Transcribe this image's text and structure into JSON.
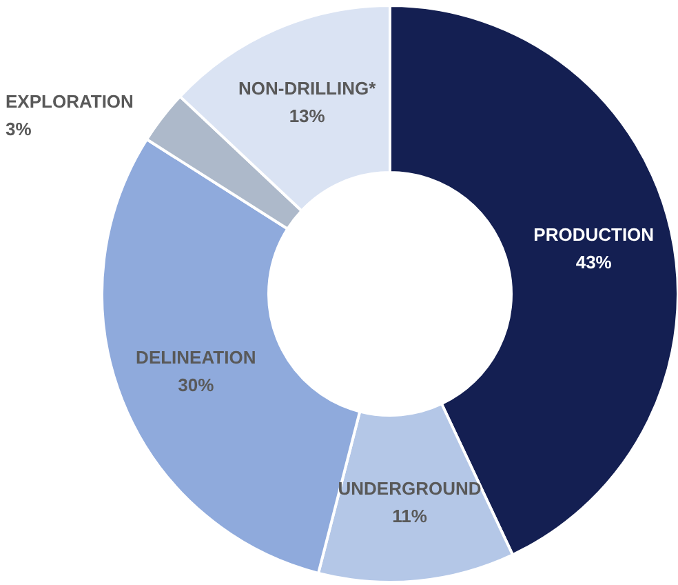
{
  "chart_data": {
    "type": "donut",
    "categories": [
      "PRODUCTION",
      "UNDERGROUND",
      "DELINEATION",
      "EXPLORATION",
      "NON-DRILLING*"
    ],
    "values": [
      43,
      11,
      30,
      3,
      13
    ],
    "value_labels": [
      "43%",
      "11%",
      "30%",
      "3%",
      "13%"
    ],
    "colors": [
      "#141f52",
      "#b4c7e7",
      "#8faadc",
      "#adb9ca",
      "#dae3f3"
    ],
    "legend": false
  }
}
